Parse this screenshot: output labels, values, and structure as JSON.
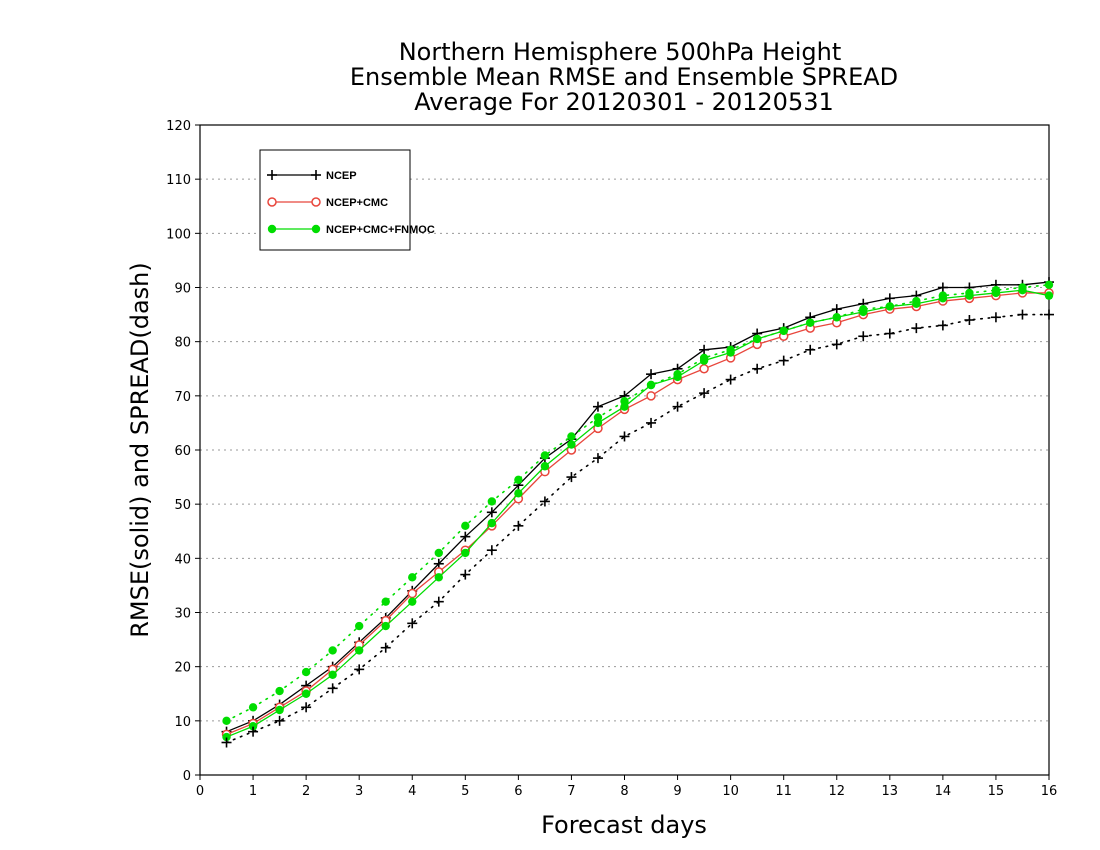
{
  "chart_data": {
    "type": "line",
    "title_lines": [
      "Northern Hemisphere 500hPa Height",
      "Ensemble Mean RMSE and Ensemble SPREAD",
      "Average For 20120301 - 20120531"
    ],
    "xlabel": "Forecast days",
    "ylabel": "RMSE(solid) and SPREAD(dash)",
    "xlim": [
      0,
      16
    ],
    "ylim": [
      0,
      120
    ],
    "xticks": [
      0,
      1,
      2,
      3,
      4,
      5,
      6,
      7,
      8,
      9,
      10,
      11,
      12,
      13,
      14,
      15,
      16
    ],
    "yticks": [
      0,
      10,
      20,
      30,
      40,
      50,
      60,
      70,
      80,
      90,
      100,
      110,
      120
    ],
    "grid": "horizontal dotted",
    "legend_position": "top-left",
    "x": [
      0.5,
      1,
      1.5,
      2,
      2.5,
      3,
      3.5,
      4,
      4.5,
      5,
      5.5,
      6,
      6.5,
      7,
      7.5,
      8,
      8.5,
      9,
      9.5,
      10,
      10.5,
      11,
      11.5,
      12,
      12.5,
      13,
      13.5,
      14,
      14.5,
      15,
      15.5,
      16
    ],
    "series": [
      {
        "name": "NCEP",
        "kind": "rmse",
        "color": "#000000",
        "marker": "plus",
        "values": [
          8.0,
          10.0,
          13.0,
          16.5,
          20.0,
          24.5,
          29.0,
          34.0,
          39.0,
          44.0,
          48.5,
          53.5,
          58.5,
          62.0,
          68.0,
          70.0,
          74.0,
          75.0,
          78.5,
          79.0,
          81.5,
          82.5,
          84.5,
          86.0,
          87.0,
          88.0,
          88.5,
          90.0,
          90.0,
          90.5,
          90.5,
          91.0
        ]
      },
      {
        "name": "NCEP+CMC",
        "kind": "rmse",
        "color": "#e8463c",
        "marker": "open-circle",
        "values": [
          7.5,
          9.5,
          12.5,
          15.5,
          19.5,
          24.0,
          28.5,
          33.5,
          37.5,
          41.5,
          46.0,
          51.0,
          56.0,
          60.0,
          64.0,
          67.5,
          70.0,
          73.0,
          75.0,
          77.0,
          79.5,
          81.0,
          82.5,
          83.5,
          85.0,
          86.0,
          86.5,
          87.5,
          88.0,
          88.5,
          89.0,
          89.0
        ]
      },
      {
        "name": "NCEP+CMC+FNMOC",
        "kind": "rmse",
        "color": "#00dd00",
        "marker": "filled-circle",
        "values": [
          7.0,
          9.0,
          12.0,
          15.0,
          18.5,
          23.0,
          27.5,
          32.0,
          36.5,
          41.0,
          46.5,
          52.0,
          57.0,
          61.0,
          65.0,
          68.0,
          72.0,
          73.5,
          76.5,
          78.0,
          80.5,
          82.0,
          83.5,
          84.5,
          85.5,
          86.5,
          87.0,
          88.0,
          88.5,
          89.0,
          89.5,
          88.5
        ]
      },
      {
        "name": "NCEP spread",
        "kind": "spread",
        "color": "#000000",
        "marker": "plus",
        "values": [
          6.0,
          8.0,
          10.0,
          12.5,
          16.0,
          19.5,
          23.5,
          28.0,
          32.0,
          37.0,
          41.5,
          46.0,
          50.5,
          55.0,
          58.5,
          62.5,
          65.0,
          68.0,
          70.5,
          73.0,
          75.0,
          76.5,
          78.5,
          79.5,
          81.0,
          81.5,
          82.5,
          83.0,
          84.0,
          84.5,
          85.0,
          85.0
        ]
      },
      {
        "name": "NCEP+CMC+FNMOC spread",
        "kind": "spread",
        "color": "#00dd00",
        "marker": "filled-circle",
        "values": [
          10.0,
          12.5,
          15.5,
          19.0,
          23.0,
          27.5,
          32.0,
          36.5,
          41.0,
          46.0,
          50.5,
          54.5,
          59.0,
          62.5,
          66.0,
          69.0,
          72.0,
          74.0,
          77.0,
          78.5,
          80.5,
          82.0,
          83.5,
          84.5,
          86.0,
          86.5,
          87.5,
          88.5,
          89.0,
          89.5,
          90.0,
          90.5
        ]
      }
    ],
    "legend_entries": [
      "NCEP",
      "NCEP+CMC",
      "NCEP+CMC+FNMOC"
    ]
  }
}
